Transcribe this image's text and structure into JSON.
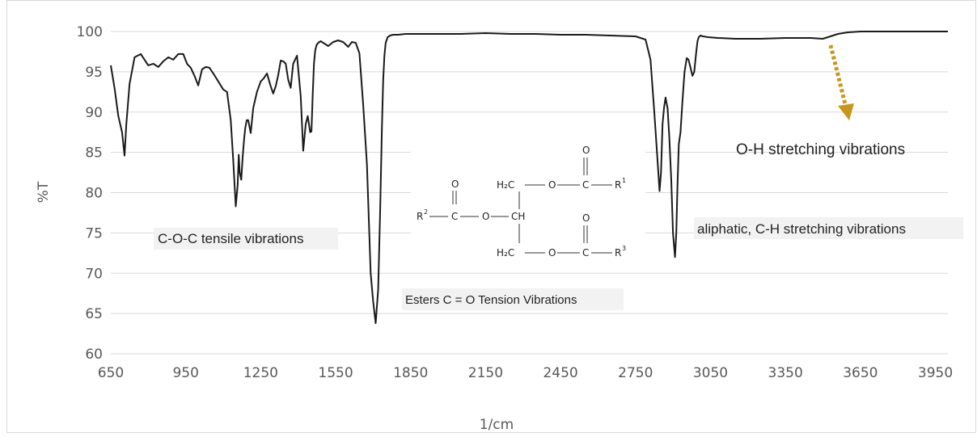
{
  "chart_data": {
    "type": "line",
    "title": "",
    "xlabel": "1/cm",
    "ylabel": "%T",
    "xlim": [
      650,
      4000
    ],
    "ylim": [
      60,
      100
    ],
    "x_ticks": [
      "650",
      "950",
      "1250",
      "1550",
      "1850",
      "2150",
      "2450",
      "2750",
      "3050",
      "3350",
      "3650",
      "3950"
    ],
    "y_ticks": [
      "60",
      "65",
      "70",
      "75",
      "80",
      "85",
      "90",
      "95",
      "100"
    ],
    "grid": "horizontal",
    "legend": "none",
    "line_color": "#1a1a1a",
    "series": [
      {
        "x": [
          650,
          665,
          680,
          695,
          705,
          712,
          725,
          745,
          770,
          800,
          820,
          840,
          860,
          880,
          900,
          920,
          940,
          955,
          970,
          985,
          1000,
          1015,
          1030,
          1045,
          1060,
          1080,
          1100,
          1115,
          1130,
          1140,
          1150,
          1158,
          1162,
          1166,
          1172,
          1178,
          1183,
          1188,
          1194,
          1200,
          1210,
          1220,
          1235,
          1250,
          1262,
          1275,
          1290,
          1300,
          1310,
          1320,
          1330,
          1340,
          1350,
          1360,
          1370,
          1380,
          1395,
          1410,
          1420,
          1430,
          1438,
          1443,
          1448,
          1453,
          1458,
          1463,
          1468,
          1473,
          1480,
          1490,
          1505,
          1520,
          1540,
          1560,
          1580,
          1600,
          1615,
          1630,
          1645,
          1660,
          1675,
          1690,
          1700,
          1710,
          1720,
          1728,
          1735,
          1740,
          1745,
          1750,
          1758,
          1768,
          1780,
          1800,
          1830,
          1870,
          1950,
          2050,
          2150,
          2250,
          2350,
          2450,
          2550,
          2650,
          2750,
          2790,
          2810,
          2825,
          2838,
          2846,
          2852,
          2858,
          2864,
          2870,
          2878,
          2885,
          2893,
          2900,
          2908,
          2913,
          2918,
          2923,
          2930,
          2938,
          2946,
          2955,
          2962,
          2970,
          2978,
          2985,
          2992,
          2998,
          3003,
          3010,
          3020,
          3040,
          3080,
          3150,
          3250,
          3350,
          3450,
          3500,
          3530,
          3560,
          3600,
          3650,
          3700,
          3800,
          3900,
          4000
        ],
        "y": [
          95.8,
          93.0,
          89.5,
          87.5,
          84.6,
          88.5,
          93.5,
          96.8,
          97.2,
          95.8,
          96.0,
          95.6,
          96.3,
          96.8,
          96.5,
          97.2,
          97.2,
          96.0,
          95.5,
          94.5,
          93.3,
          95.3,
          95.6,
          95.5,
          94.8,
          93.8,
          92.8,
          92.5,
          89.0,
          84.0,
          78.3,
          81.0,
          84.7,
          82.5,
          81.6,
          84.5,
          86.5,
          88.0,
          89.0,
          89.0,
          87.4,
          90.5,
          92.5,
          93.8,
          94.2,
          94.8,
          93.2,
          92.3,
          93.2,
          94.6,
          96.4,
          96.3,
          96.0,
          94.0,
          93.0,
          96.0,
          97.0,
          92.0,
          85.2,
          88.5,
          89.5,
          88.5,
          87.5,
          87.6,
          92.0,
          96.0,
          97.6,
          98.3,
          98.6,
          98.8,
          98.5,
          98.2,
          98.7,
          98.9,
          98.7,
          98.1,
          98.7,
          98.6,
          97.3,
          91.0,
          83.5,
          70.0,
          66.5,
          63.8,
          68.0,
          78.0,
          88.0,
          94.0,
          97.0,
          98.6,
          99.3,
          99.5,
          99.6,
          99.6,
          99.7,
          99.7,
          99.7,
          99.7,
          99.8,
          99.7,
          99.7,
          99.6,
          99.6,
          99.5,
          99.4,
          99.0,
          96.5,
          90.0,
          84.0,
          80.2,
          82.5,
          88.5,
          90.5,
          91.8,
          90.5,
          87.0,
          81.5,
          75.0,
          72.0,
          75.0,
          81.0,
          86.0,
          87.5,
          91.5,
          95.0,
          96.7,
          96.5,
          95.5,
          94.5,
          95.0,
          97.2,
          98.8,
          99.3,
          99.5,
          99.4,
          99.3,
          99.2,
          99.1,
          99.1,
          99.2,
          99.2,
          99.1,
          99.4,
          99.7,
          99.9,
          100.0,
          100.0,
          100.0,
          100.0,
          100.0
        ]
      }
    ],
    "annotations": [
      {
        "text": "C-O-C tensile vibrations",
        "x": 1150,
        "y": 74.5
      },
      {
        "text": "Esters C = O Tension Vibrations",
        "x": 2185,
        "y": 66.9
      },
      {
        "text": "aliphatic, C-H stretching vibrations",
        "x": 3420,
        "y": 75.4
      },
      {
        "text": "O-H stretching vibrations",
        "x": 3555,
        "y": 85.6
      }
    ],
    "arrow": {
      "color": "#c8961a",
      "from": [
        3600,
        98.3
      ],
      "to": [
        3620,
        88.5
      ]
    },
    "structure": {
      "labels": [
        "O",
        "O",
        "O",
        "H₂C",
        "CH",
        "H₂C",
        "O",
        "O",
        "O",
        "R",
        "R",
        "R"
      ],
      "superscripts": [
        "1",
        "2",
        "3"
      ]
    }
  }
}
